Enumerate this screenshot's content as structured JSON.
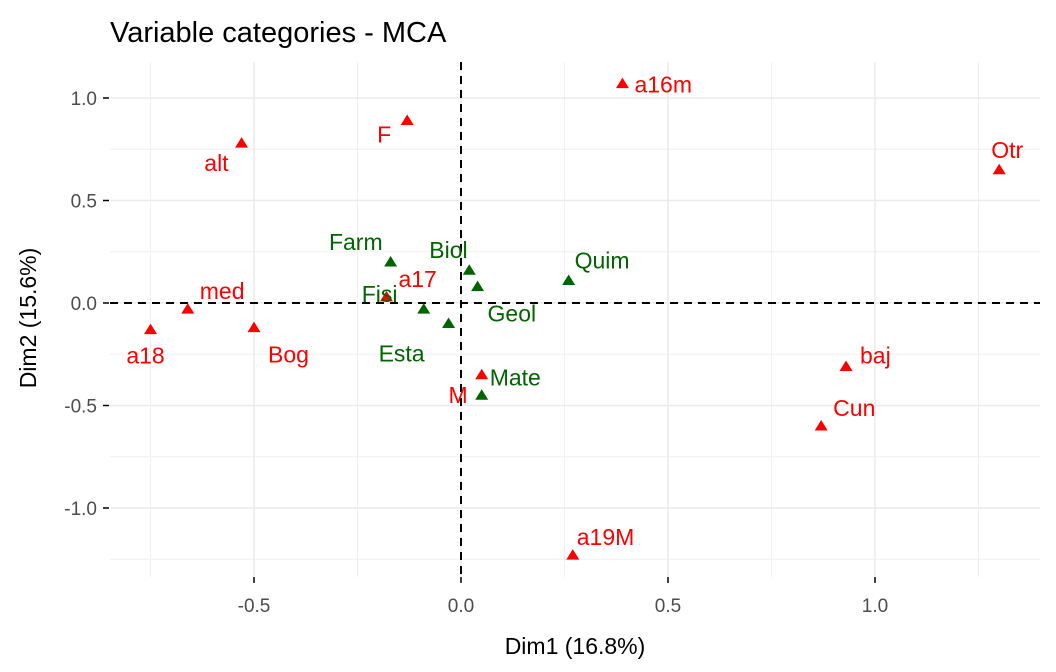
{
  "chart_data": {
    "type": "scatter",
    "title": "Variable categories - MCA",
    "xlabel": "Dim1 (16.8%)",
    "ylabel": "Dim2 (15.6%)",
    "xlim": [
      -0.88,
      1.4
    ],
    "ylim": [
      -1.34,
      1.18
    ],
    "xticks": [
      -0.5,
      0.0,
      0.5,
      1.0
    ],
    "xtick_labels": [
      "-0.5",
      "0.0",
      "0.5",
      "1.0"
    ],
    "yticks": [
      -1.0,
      -0.5,
      0.0,
      0.5,
      1.0
    ],
    "ytick_labels": [
      "-1.0",
      "-0.5",
      "0.0",
      "0.5",
      "1.0"
    ],
    "grid": true,
    "reference_lines": {
      "x": 0,
      "y": 0,
      "style": "dashed"
    },
    "colors": {
      "group_red": "#ff0000",
      "group_green": "#006400"
    },
    "series": [
      {
        "name": "red",
        "color": "#ff0000",
        "marker": "triangle",
        "points": [
          {
            "label": "a16m",
            "x": 0.39,
            "y": 1.07
          },
          {
            "label": "F",
            "x": -0.13,
            "y": 0.89
          },
          {
            "label": "alt",
            "x": -0.53,
            "y": 0.78
          },
          {
            "label": "Otr",
            "x": 1.3,
            "y": 0.65
          },
          {
            "label": "a17",
            "x": -0.18,
            "y": 0.03
          },
          {
            "label": "med",
            "x": -0.66,
            "y": -0.03
          },
          {
            "label": "a18",
            "x": -0.75,
            "y": -0.13
          },
          {
            "label": "Bog",
            "x": -0.5,
            "y": -0.12
          },
          {
            "label": "M",
            "x": 0.05,
            "y": -0.35
          },
          {
            "label": "baj",
            "x": 0.93,
            "y": -0.31
          },
          {
            "label": "Cun",
            "x": 0.87,
            "y": -0.6
          },
          {
            "label": "a19M",
            "x": 0.27,
            "y": -1.23
          }
        ]
      },
      {
        "name": "green",
        "color": "#006400",
        "marker": "triangle",
        "points": [
          {
            "label": "Farm",
            "x": -0.17,
            "y": 0.2
          },
          {
            "label": "Biol",
            "x": 0.02,
            "y": 0.16
          },
          {
            "label": "Geol",
            "x": 0.04,
            "y": 0.08
          },
          {
            "label": "Quim",
            "x": 0.26,
            "y": 0.11
          },
          {
            "label": "Fisi",
            "x": -0.09,
            "y": -0.03
          },
          {
            "label": "Esta",
            "x": -0.03,
            "y": -0.1
          },
          {
            "label": "Mate",
            "x": 0.05,
            "y": -0.45
          }
        ]
      }
    ]
  }
}
